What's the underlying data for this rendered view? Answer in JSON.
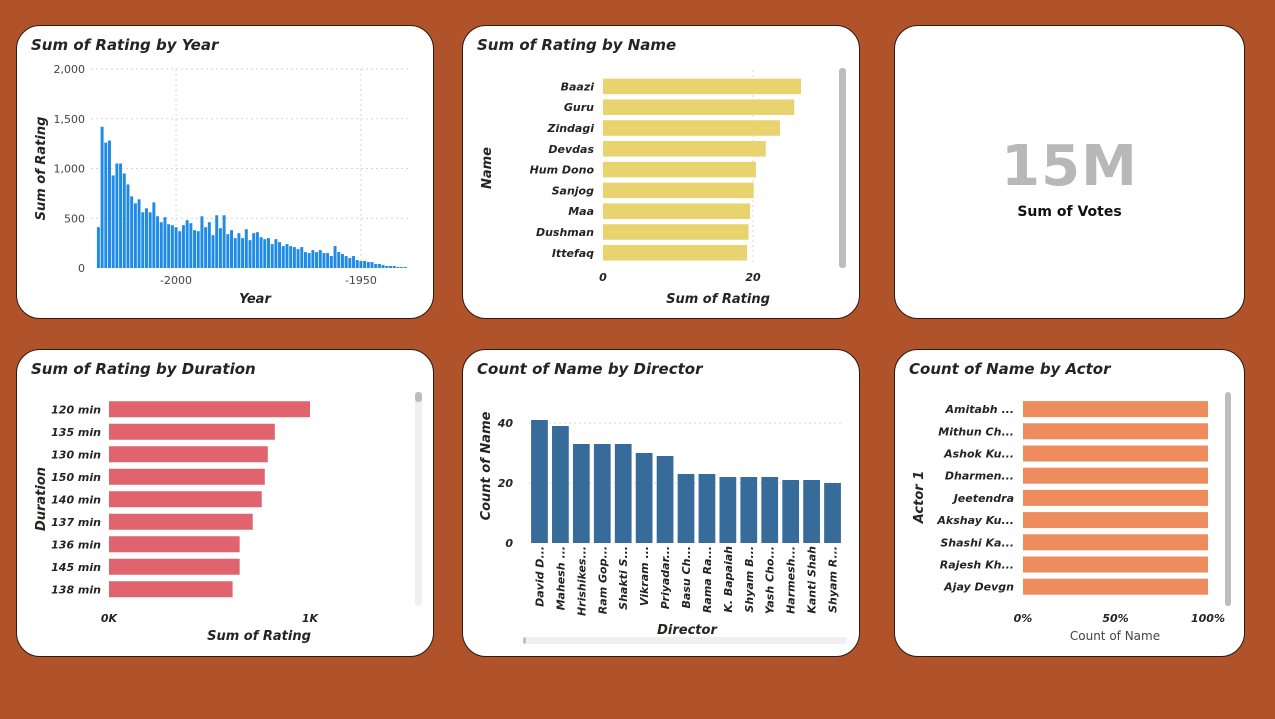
{
  "kpi": {
    "value": "15M",
    "label": "Sum of Votes"
  },
  "colors": {
    "background": "#b1532a",
    "year": "#1f8be6",
    "name": "#e8d36e",
    "duration": "#e0636e",
    "director": "#376b9a",
    "actor": "#ee8c5e"
  },
  "chart_data": [
    {
      "id": "year",
      "type": "bar",
      "title": "Sum of Rating by Year",
      "xlabel": "Year",
      "ylabel": "Sum of Rating",
      "x_reversed": true,
      "xlim": [
        2023,
        1937
      ],
      "ylim": [
        0,
        2000
      ],
      "yticks": [
        0,
        500,
        1000,
        1500,
        2000
      ],
      "ytick_labels": [
        "0",
        "500",
        "1,000",
        "1,500",
        "2,000"
      ],
      "xticks": [
        2000,
        1950
      ],
      "xtick_labels": [
        "-2000",
        "-1950"
      ],
      "grid": true,
      "x_start": 2021,
      "x_step": -1,
      "values": [
        410,
        1420,
        1260,
        1280,
        930,
        1050,
        1050,
        950,
        840,
        720,
        650,
        690,
        560,
        600,
        560,
        660,
        520,
        460,
        510,
        440,
        430,
        410,
        370,
        430,
        480,
        450,
        380,
        370,
        520,
        410,
        460,
        330,
        530,
        400,
        530,
        340,
        380,
        300,
        350,
        300,
        390,
        280,
        350,
        360,
        310,
        290,
        300,
        240,
        290,
        260,
        220,
        240,
        220,
        210,
        190,
        210,
        160,
        150,
        180,
        160,
        180,
        150,
        150,
        120,
        220,
        160,
        140,
        120,
        100,
        120,
        80,
        70,
        70,
        60,
        60,
        40,
        40,
        30,
        20,
        20,
        20,
        10,
        10,
        10
      ]
    },
    {
      "id": "name",
      "type": "bar",
      "orientation": "horizontal",
      "title": "Sum of Rating by Name",
      "xlabel": "Sum of Rating",
      "ylabel": "Name",
      "categories": [
        "Baazi",
        "Guru",
        "Zindagi",
        "Devdas",
        "Hum Dono",
        "Sanjog",
        "Maa",
        "Dushman",
        "Ittefaq"
      ],
      "values": [
        26.4,
        25.5,
        23.6,
        21.7,
        20.4,
        20.1,
        19.6,
        19.4,
        19.2
      ],
      "xlim": [
        0,
        30
      ],
      "xticks": [
        0,
        20
      ],
      "xtick_labels": [
        "0",
        "20"
      ],
      "grid": true
    },
    {
      "id": "duration",
      "type": "bar",
      "orientation": "horizontal",
      "title": "Sum of Rating by Duration",
      "xlabel": "Sum of Rating",
      "ylabel": "Duration",
      "categories": [
        "120 min",
        "135 min",
        "130 min",
        "150 min",
        "140 min",
        "137 min",
        "136 min",
        "145 min",
        "138 min"
      ],
      "values": [
        1000,
        825,
        790,
        775,
        760,
        715,
        650,
        650,
        615
      ],
      "xlim": [
        0,
        1000
      ],
      "xticks": [
        0,
        1000
      ],
      "xtick_labels": [
        "0K",
        "1K"
      ],
      "grid": false
    },
    {
      "id": "director",
      "type": "bar",
      "title": "Count of Name by Director",
      "xlabel": "Director",
      "ylabel": "Count of Name",
      "categories": [
        "David D...",
        "Mahesh ...",
        "Hrishikes...",
        "Ram Gop...",
        "Shakti S...",
        "Vikram ...",
        "Priyadar...",
        "Basu Ch...",
        "Rama Ra...",
        "K. Bapaiah",
        "Shyam B...",
        "Yash Cho...",
        "Harmesh...",
        "Kanti Shah",
        "Shyam R..."
      ],
      "values": [
        41,
        39,
        33,
        33,
        33,
        30,
        29,
        23,
        23,
        22,
        22,
        22,
        21,
        21,
        20
      ],
      "ylim": [
        0,
        45
      ],
      "yticks": [
        0,
        20,
        40
      ],
      "ytick_labels": [
        "0",
        "20",
        "40"
      ],
      "grid": true
    },
    {
      "id": "actor",
      "type": "bar",
      "orientation": "horizontal",
      "stacked_percent": true,
      "title": "Count of Name by Actor",
      "xlabel": "Count of Name",
      "ylabel": "Actor 1",
      "categories": [
        "Amitabh ...",
        "Mithun Ch...",
        "Ashok Ku...",
        "Dharmen...",
        "Jeetendra",
        "Akshay Ku...",
        "Shashi Ka...",
        "Rajesh Kh...",
        "Ajay Devgn"
      ],
      "values": [
        100,
        100,
        100,
        100,
        100,
        100,
        100,
        100,
        100
      ],
      "xlim": [
        0,
        100
      ],
      "xticks": [
        0,
        50,
        100
      ],
      "xtick_labels": [
        "0%",
        "50%",
        "100%"
      ],
      "grid": false
    }
  ]
}
